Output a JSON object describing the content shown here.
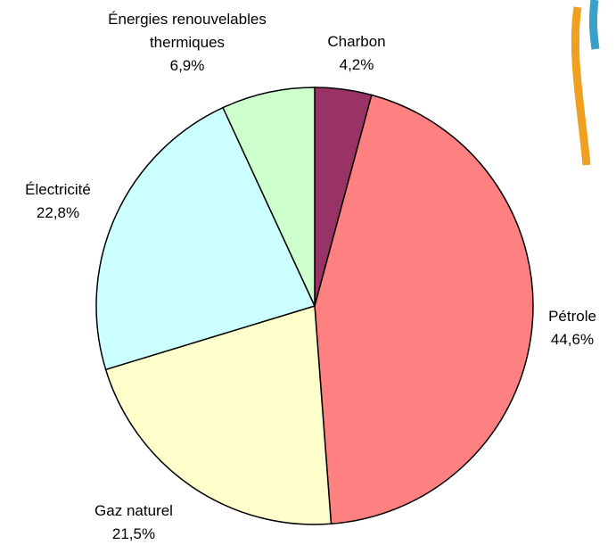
{
  "chart_data": {
    "type": "pie",
    "categories": [
      "Charbon",
      "Pétrole",
      "Gaz naturel",
      "Électricité",
      "Énergies renouvelables thermiques"
    ],
    "values": [
      4.2,
      44.6,
      21.5,
      22.8,
      6.9
    ],
    "value_labels": [
      "4,2%",
      "44,6%",
      "21,5%",
      "22,8%",
      "6,9%"
    ],
    "colors": [
      "#993366",
      "#ff8080",
      "#ffffcc",
      "#ccffff",
      "#ccffcc"
    ]
  }
}
